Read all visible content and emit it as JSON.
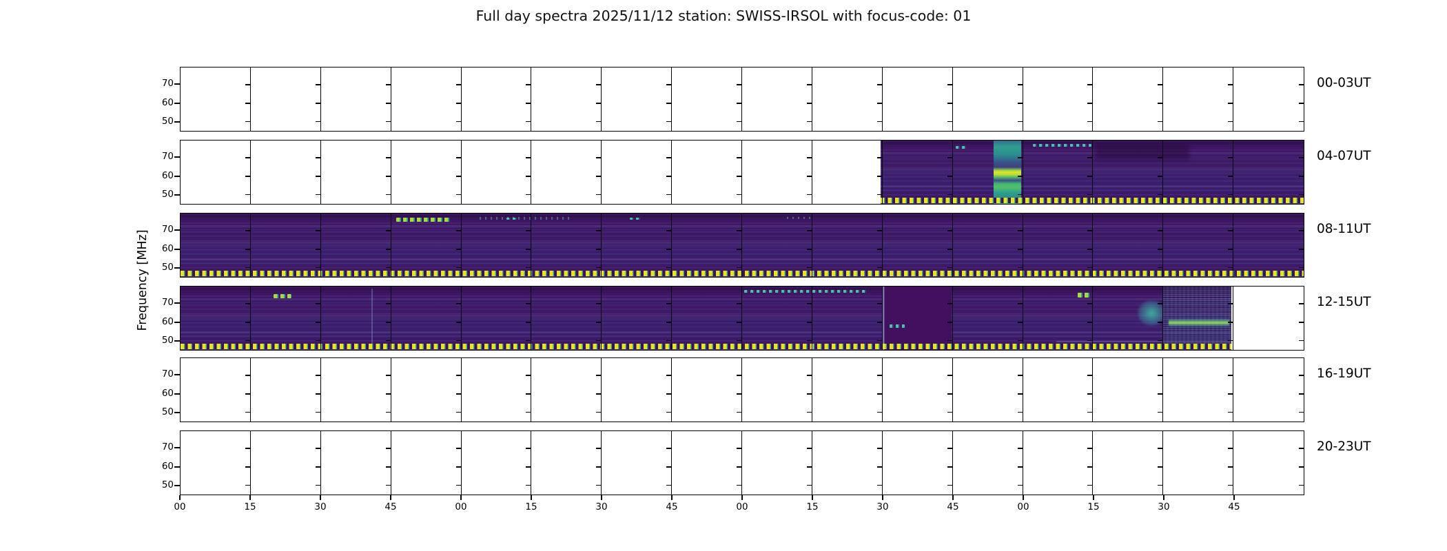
{
  "title": "Full day spectra 2025/11/12 station: SWISS-IRSOL with focus-code: 01",
  "y_axis": {
    "label": "Frequency [MHz]",
    "tick_labels": [
      "70",
      "60",
      "50"
    ]
  },
  "x_axis": {
    "meaning": "minutes past each hour",
    "tick_labels": [
      "00",
      "15",
      "30",
      "45",
      "00",
      "15",
      "30",
      "45",
      "00",
      "15",
      "30",
      "45",
      "00",
      "15",
      "30",
      "45"
    ]
  },
  "row_labels": [
    "00-03UT",
    "04-07UT",
    "08-11UT",
    "12-15UT",
    "16-19UT",
    "20-23UT"
  ],
  "colors": {
    "background": "#ffffff",
    "axis": "#000000",
    "spectrogram_base": "#401463",
    "stripe_blue": "#5a6fc0",
    "bright_yellow": "#e8e41f",
    "teal": "#2aa187",
    "green": "#4ac16d",
    "colormap": "viridis"
  },
  "chart_data": {
    "type": "heatmap",
    "subtype": "radio spectrogram full-day quicklook, 6 rows x 16 fifteen-minute segments",
    "title": "Full day spectra 2025/11/12 station: SWISS-IRSOL with focus-code: 01",
    "ylabel": "Frequency [MHz]",
    "y_ticks_mhz": [
      70,
      60,
      50
    ],
    "y_range_mhz": [
      45.5,
      79.5
    ],
    "x_tick_labels": [
      "00",
      "15",
      "30",
      "45",
      "00",
      "15",
      "30",
      "45",
      "00",
      "15",
      "30",
      "45",
      "00",
      "15",
      "30",
      "45"
    ],
    "segments_per_row": 16,
    "segment_duration_min": 15,
    "rows": [
      {
        "label": "00-03UT",
        "hours": "00:00-04:00 UT",
        "coverage": null,
        "features": []
      },
      {
        "label": "04-07UT",
        "hours": "04:00-08:00 UT",
        "coverage": {
          "start_frac": 0.6232,
          "end_frac": 1.0,
          "start": "06:30",
          "end": "08:00"
        },
        "features": [
          {
            "kind": "cyan-dashes",
            "x0": 0.69,
            "x1": 0.701,
            "y0": 0.09,
            "y1": 0.13,
            "time": "~06:48 UT",
            "note": "small cyan dash near top"
          },
          {
            "kind": "burst-band",
            "x0": 0.7237,
            "x1": 0.7487,
            "y0": 0.0,
            "y1": 1.0,
            "time": "06:54-07:00 UT",
            "note": "bright broadband enhancement, strongest near 60 MHz"
          },
          {
            "kind": "cyan-dashes",
            "x0": 0.759,
            "x1": 0.811,
            "y0": 0.05,
            "y1": 0.1,
            "time": "07:05-07:15 UT",
            "note": "intermittent narrowband emission near 77 MHz"
          },
          {
            "kind": "dark-blob",
            "x0": 0.814,
            "x1": 0.898,
            "y0": 0.05,
            "y1": 0.3,
            "time": "07:15-07:35 UT",
            "note": "slightly darker patch"
          }
        ]
      },
      {
        "label": "08-11UT",
        "hours": "08:00-12:00 UT",
        "coverage": {
          "start_frac": 0.0,
          "end_frac": 1.0,
          "start": "08:00",
          "end": "12:00"
        },
        "features": [
          {
            "kind": "green-dashes",
            "x0": 0.192,
            "x1": 0.241,
            "y0": 0.07,
            "y1": 0.135,
            "time": "~08:47-08:58 UT",
            "note": "bright green dashes near 75 MHz"
          },
          {
            "kind": "cyan-specks",
            "x0": 0.266,
            "x1": 0.35,
            "y0": 0.05,
            "y1": 0.095,
            "time": "~09:04-09:24 UT",
            "note": "faint cyan specks near top"
          },
          {
            "kind": "cyan-dashes",
            "x0": 0.29,
            "x1": 0.3,
            "y0": 0.06,
            "y1": 0.1,
            "time": "~09:10 UT",
            "note": "short cyan dash"
          },
          {
            "kind": "cyan-dashes",
            "x0": 0.4,
            "x1": 0.41,
            "y0": 0.06,
            "y1": 0.1,
            "time": "~09:38 UT",
            "note": "short cyan dash"
          },
          {
            "kind": "cyan-specks",
            "x0": 0.54,
            "x1": 0.562,
            "y0": 0.05,
            "y1": 0.09,
            "time": "~10:10 UT",
            "note": "faint specks"
          }
        ]
      },
      {
        "label": "12-15UT",
        "hours": "12:00-16:00 UT",
        "coverage": {
          "start_frac": 0.0,
          "end_frac": 0.9355,
          "start": "12:00",
          "end": "15:45"
        },
        "features": [
          {
            "kind": "green-dashes",
            "x0": 0.083,
            "x1": 0.099,
            "y0": 0.12,
            "y1": 0.19,
            "time": "~12:20 UT",
            "note": "bright green dashes near 73 MHz"
          },
          {
            "kind": "vline",
            "x0": 0.17,
            "x1": 0.1713,
            "y0": 0.03,
            "y1": 0.97,
            "time": "~12:41 UT",
            "note": "faint vertical line"
          },
          {
            "kind": "cyan-dashes",
            "x0": 0.502,
            "x1": 0.612,
            "y0": 0.05,
            "y1": 0.1,
            "time": "14:00-14:27 UT",
            "note": "intermittent cyan dashes near top"
          },
          {
            "kind": "dark-segment",
            "x0": 0.625,
            "x1": 0.6865,
            "y0": 0.005,
            "y1": 0.995,
            "time": "14:30-14:45 UT",
            "note": "flat dark segment (attenuated)"
          },
          {
            "kind": "cyan-dashes",
            "x0": 0.631,
            "x1": 0.645,
            "y0": 0.6,
            "y1": 0.655,
            "time": "~14:32 UT",
            "note": "cyan dash near 54 MHz"
          },
          {
            "kind": "green-dashes",
            "x0": 0.799,
            "x1": 0.809,
            "y0": 0.1,
            "y1": 0.17,
            "time": "~15:06 UT",
            "note": "bright green dash near 73 MHz"
          },
          {
            "kind": "bottom-bright",
            "x0": 0.78,
            "x1": 0.9355,
            "y0": 0.86,
            "y1": 0.975,
            "time": "15:07-15:45 UT",
            "note": "brighter low-frequency stripes"
          },
          {
            "kind": "teal-blob",
            "x0": 0.852,
            "x1": 0.875,
            "y0": 0.22,
            "y1": 0.62,
            "time": "~15:26 UT",
            "note": "teal wavy patch"
          },
          {
            "kind": "moire-segment",
            "x0": 0.874,
            "x1": 0.9355,
            "y0": 0.005,
            "y1": 0.995,
            "time": "15:30-15:45 UT",
            "note": "dense rippled interference"
          },
          {
            "kind": "teal-streak",
            "x0": 0.88,
            "x1": 0.934,
            "y0": 0.5,
            "y1": 0.64,
            "time": "15:30-15:45 UT",
            "note": "bright streak near 60 MHz"
          }
        ]
      },
      {
        "label": "16-19UT",
        "hours": "16:00-20:00 UT",
        "coverage": null,
        "features": []
      },
      {
        "label": "20-23UT",
        "hours": "20:00-00:00 UT",
        "coverage": null,
        "features": []
      }
    ]
  }
}
